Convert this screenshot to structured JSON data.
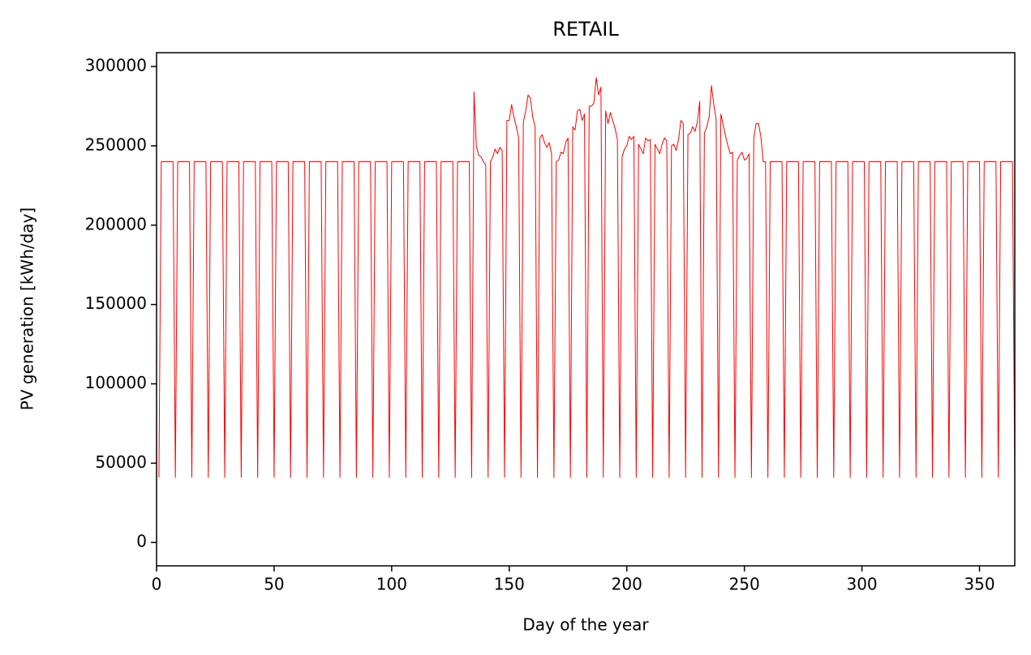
{
  "chart_data": {
    "type": "line",
    "title": "RETAIL",
    "x_label": "Day of the year",
    "y_label": "PV generation [kWh/day]",
    "color": "#ff0000",
    "xlim": [
      0,
      365
    ],
    "xticks": [
      0,
      50,
      100,
      150,
      200,
      250,
      300,
      350
    ],
    "ylim": [
      -14700,
      308700
    ],
    "yticks": [
      0,
      50000,
      100000,
      150000,
      200000,
      250000,
      300000
    ],
    "x": [
      1,
      2,
      3,
      4,
      5,
      6,
      7,
      8,
      9,
      10,
      11,
      12,
      13,
      14,
      15,
      16,
      17,
      18,
      19,
      20,
      21,
      22,
      23,
      24,
      25,
      26,
      27,
      28,
      29,
      30,
      31,
      32,
      33,
      34,
      35,
      36,
      37,
      38,
      39,
      40,
      41,
      42,
      43,
      44,
      45,
      46,
      47,
      48,
      49,
      50,
      51,
      52,
      53,
      54,
      55,
      56,
      57,
      58,
      59,
      60,
      61,
      62,
      63,
      64,
      65,
      66,
      67,
      68,
      69,
      70,
      71,
      72,
      73,
      74,
      75,
      76,
      77,
      78,
      79,
      80,
      81,
      82,
      83,
      84,
      85,
      86,
      87,
      88,
      89,
      90,
      91,
      92,
      93,
      94,
      95,
      96,
      97,
      98,
      99,
      100,
      101,
      102,
      103,
      104,
      105,
      106,
      107,
      108,
      109,
      110,
      111,
      112,
      113,
      114,
      115,
      116,
      117,
      118,
      119,
      120,
      121,
      122,
      123,
      124,
      125,
      126,
      127,
      128,
      129,
      130,
      131,
      132,
      133,
      134,
      135,
      136,
      137,
      138,
      139,
      140,
      141,
      142,
      143,
      144,
      145,
      146,
      147,
      148,
      149,
      150,
      151,
      152,
      153,
      154,
      155,
      156,
      157,
      158,
      159,
      160,
      161,
      162,
      163,
      164,
      165,
      166,
      167,
      168,
      169,
      170,
      171,
      172,
      173,
      174,
      175,
      176,
      177,
      178,
      179,
      180,
      181,
      182,
      183,
      184,
      185,
      186,
      187,
      188,
      189,
      190,
      191,
      192,
      193,
      194,
      195,
      196,
      197,
      198,
      199,
      200,
      201,
      202,
      203,
      204,
      205,
      206,
      207,
      208,
      209,
      210,
      211,
      212,
      213,
      214,
      215,
      216,
      217,
      218,
      219,
      220,
      221,
      222,
      223,
      224,
      225,
      226,
      227,
      228,
      229,
      230,
      231,
      232,
      233,
      234,
      235,
      236,
      237,
      238,
      239,
      240,
      241,
      242,
      243,
      244,
      245,
      246,
      247,
      248,
      249,
      250,
      251,
      252,
      253,
      254,
      255,
      256,
      257,
      258,
      259,
      260,
      261,
      262,
      263,
      264,
      265,
      266,
      267,
      268,
      269,
      270,
      271,
      272,
      273,
      274,
      275,
      276,
      277,
      278,
      279,
      280,
      281,
      282,
      283,
      284,
      285,
      286,
      287,
      288,
      289,
      290,
      291,
      292,
      293,
      294,
      295,
      296,
      297,
      298,
      299,
      300,
      301,
      302,
      303,
      304,
      305,
      306,
      307,
      308,
      309,
      310,
      311,
      312,
      313,
      314,
      315,
      316,
      317,
      318,
      319,
      320,
      321,
      322,
      323,
      324,
      325,
      326,
      327,
      328,
      329,
      330,
      331,
      332,
      333,
      334,
      335,
      336,
      337,
      338,
      339,
      340,
      341,
      342,
      343,
      344,
      345,
      346,
      347,
      348,
      349,
      350,
      351,
      352,
      353,
      354,
      355,
      356,
      357,
      358,
      359,
      360,
      361,
      362,
      363,
      364,
      365
    ],
    "values": [
      41000,
      240000,
      240000,
      240000,
      240000,
      240000,
      240000,
      41000,
      240000,
      240000,
      240000,
      240000,
      240000,
      240000,
      41000,
      240000,
      240000,
      240000,
      240000,
      240000,
      240000,
      41000,
      240000,
      240000,
      240000,
      240000,
      240000,
      240000,
      41000,
      240000,
      240000,
      240000,
      240000,
      240000,
      240000,
      41000,
      240000,
      240000,
      240000,
      240000,
      240000,
      240000,
      41000,
      240000,
      240000,
      240000,
      240000,
      240000,
      240000,
      41000,
      240000,
      240000,
      240000,
      240000,
      240000,
      240000,
      41000,
      240000,
      240000,
      240000,
      240000,
      240000,
      240000,
      41000,
      240000,
      240000,
      240000,
      240000,
      240000,
      240000,
      41000,
      240000,
      240000,
      240000,
      240000,
      240000,
      240000,
      41000,
      240000,
      240000,
      240000,
      240000,
      240000,
      240000,
      41000,
      240000,
      240000,
      240000,
      240000,
      240000,
      240000,
      41000,
      240000,
      240000,
      240000,
      240000,
      240000,
      240000,
      41000,
      240000,
      240000,
      240000,
      240000,
      240000,
      240000,
      41000,
      240000,
      240000,
      240000,
      240000,
      240000,
      240000,
      41000,
      240000,
      240000,
      240000,
      240000,
      240000,
      240000,
      41000,
      240000,
      240000,
      240000,
      240000,
      240000,
      240000,
      41000,
      240000,
      240000,
      240000,
      240000,
      240000,
      240000,
      41000,
      284000,
      250000,
      244000,
      243000,
      240000,
      238000,
      41000,
      240000,
      243000,
      248000,
      245000,
      249000,
      247000,
      41000,
      266000,
      266000,
      276000,
      268000,
      262000,
      255000,
      41000,
      265000,
      272000,
      282000,
      280000,
      268000,
      262000,
      41000,
      255000,
      257000,
      252000,
      249000,
      252000,
      245000,
      41000,
      240000,
      241000,
      246000,
      245000,
      252000,
      255000,
      41000,
      262000,
      260000,
      272000,
      273000,
      266000,
      270000,
      41000,
      275000,
      275000,
      277000,
      293000,
      282000,
      287000,
      41000,
      272000,
      264000,
      271000,
      266000,
      261000,
      254000,
      41000,
      243000,
      248000,
      250000,
      256000,
      254000,
      256000,
      41000,
      251000,
      248000,
      245000,
      255000,
      253000,
      254000,
      41000,
      251000,
      248000,
      245000,
      251000,
      255000,
      253000,
      41000,
      250000,
      251000,
      247000,
      254000,
      266000,
      264000,
      41000,
      257000,
      258000,
      262000,
      259000,
      265000,
      278000,
      41000,
      258000,
      262000,
      268000,
      288000,
      276000,
      266000,
      41000,
      270000,
      263000,
      256000,
      250000,
      245000,
      246000,
      41000,
      241000,
      244000,
      246000,
      241000,
      242000,
      245000,
      41000,
      255000,
      264000,
      264000,
      256000,
      240000,
      240000,
      41000,
      240000,
      240000,
      240000,
      240000,
      240000,
      240000,
      41000,
      240000,
      240000,
      240000,
      240000,
      240000,
      240000,
      41000,
      240000,
      240000,
      240000,
      240000,
      240000,
      240000,
      41000,
      240000,
      240000,
      240000,
      240000,
      240000,
      240000,
      41000,
      240000,
      240000,
      240000,
      240000,
      240000,
      240000,
      41000,
      240000,
      240000,
      240000,
      240000,
      240000,
      240000,
      41000,
      240000,
      240000,
      240000,
      240000,
      240000,
      240000,
      41000,
      240000,
      240000,
      240000,
      240000,
      240000,
      240000,
      41000,
      240000,
      240000,
      240000,
      240000,
      240000,
      240000,
      41000,
      240000,
      240000,
      240000,
      240000,
      240000,
      240000,
      41000,
      240000,
      240000,
      240000,
      240000,
      240000,
      240000,
      41000,
      240000,
      240000,
      240000,
      240000,
      240000,
      240000,
      41000,
      240000,
      240000,
      240000,
      240000,
      240000,
      240000,
      41000,
      240000,
      240000,
      240000,
      240000,
      240000,
      240000,
      41000,
      240000,
      240000,
      240000,
      240000,
      240000,
      240000,
      41000
    ]
  }
}
